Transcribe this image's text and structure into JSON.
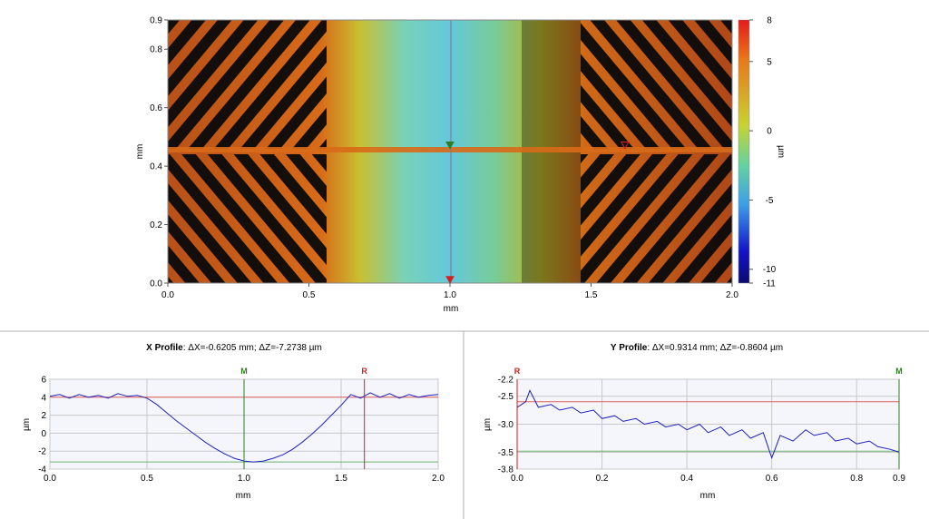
{
  "chart_data": [
    {
      "type": "heatmap",
      "xlabel": "mm",
      "ylabel": "mm",
      "xlim": [
        0.0,
        2.0
      ],
      "ylim": [
        0.0,
        0.9
      ],
      "xticks": [
        "0.0",
        "0.5",
        "1.0",
        "1.5",
        "2.0"
      ],
      "yticks": [
        "0.0",
        "0.2",
        "0.4",
        "0.6",
        "0.8",
        "0.9"
      ],
      "colorbar": {
        "label": "µm",
        "range": [
          -11,
          8
        ],
        "ticks": [
          "8",
          "5",
          "0",
          "-5",
          "-10",
          "-11"
        ],
        "colors": [
          "#e41a1a",
          "#e8781a",
          "#c8d232",
          "#64d2a0",
          "#3ca0e6",
          "#1414c8",
          "#0a0a6e"
        ]
      },
      "markers": [
        {
          "name": "M",
          "x": 1.0,
          "y": 0.47
        },
        {
          "name": "R",
          "x": 1.62,
          "y": 0.47
        },
        {
          "name": "",
          "x": 1.0,
          "y": 0.01
        }
      ],
      "grid": false
    },
    {
      "type": "line",
      "title_bold": "X Profile",
      "title_rest": ": ΔX=-0.6205 mm; ΔZ=-7.2738 µm",
      "xlabel": "mm",
      "ylabel": "µm",
      "xlim": [
        0.0,
        2.0
      ],
      "ylim": [
        -4,
        6
      ],
      "xticks": [
        "0.0",
        "0.5",
        "1.0",
        "1.5",
        "2.0"
      ],
      "yticks": [
        "-4",
        "-2",
        "0",
        "2",
        "4",
        "6"
      ],
      "cursors": [
        {
          "name": "M",
          "x": 1.0,
          "color": "#2e7d1e"
        },
        {
          "name": "R",
          "x": 1.62,
          "color": "#d42020"
        }
      ],
      "reference_lines": [
        {
          "y": 4.0,
          "color": "#e06060"
        },
        {
          "y": -3.2,
          "color": "#70b070"
        }
      ],
      "grid": true,
      "series": [
        {
          "x": [
            0.0,
            0.05,
            0.1,
            0.15,
            0.2,
            0.25,
            0.3,
            0.35,
            0.4,
            0.45,
            0.5,
            0.55,
            0.6,
            0.65,
            0.7,
            0.75,
            0.8,
            0.85,
            0.9,
            0.95,
            1.0,
            1.05,
            1.1,
            1.15,
            1.2,
            1.25,
            1.3,
            1.35,
            1.4,
            1.45,
            1.5,
            1.55,
            1.6,
            1.65,
            1.7,
            1.75,
            1.8,
            1.85,
            1.9,
            1.95,
            2.0
          ],
          "values": [
            4.1,
            4.3,
            3.9,
            4.3,
            4.0,
            4.2,
            3.9,
            4.4,
            4.1,
            4.2,
            3.9,
            3.2,
            2.3,
            1.4,
            0.6,
            -0.2,
            -1.0,
            -1.7,
            -2.3,
            -2.8,
            -3.1,
            -3.2,
            -3.1,
            -2.8,
            -2.4,
            -1.8,
            -1.0,
            -0.1,
            0.9,
            2.0,
            3.1,
            4.3,
            3.9,
            4.5,
            4.0,
            4.4,
            3.9,
            4.3,
            4.0,
            4.2,
            4.3
          ],
          "color": "#2020c0"
        }
      ]
    },
    {
      "type": "line",
      "title_bold": "Y Profile",
      "title_rest": ": ΔX=0.9314 mm; ΔZ=-0.8604 µm",
      "xlabel": "mm",
      "ylabel": "µm",
      "xlim": [
        0.0,
        0.9
      ],
      "ylim": [
        -3.8,
        -2.2
      ],
      "xticks": [
        "0.0",
        "0.2",
        "0.4",
        "0.6",
        "0.8",
        "0.9"
      ],
      "yticks": [
        "-2.2",
        "-2.5",
        "-3.0",
        "-3.5",
        "-3.8"
      ],
      "cursors": [
        {
          "name": "R",
          "x": 0.0,
          "color": "#d42020"
        },
        {
          "name": "M",
          "x": 0.9,
          "color": "#2e7d1e"
        }
      ],
      "reference_lines": [
        {
          "y": -2.6,
          "color": "#e06060"
        },
        {
          "y": -3.48,
          "color": "#70b070"
        }
      ],
      "grid": true,
      "series": [
        {
          "x": [
            0.0,
            0.02,
            0.03,
            0.05,
            0.08,
            0.1,
            0.13,
            0.15,
            0.18,
            0.2,
            0.23,
            0.25,
            0.28,
            0.3,
            0.33,
            0.35,
            0.38,
            0.4,
            0.43,
            0.45,
            0.48,
            0.5,
            0.53,
            0.55,
            0.58,
            0.6,
            0.62,
            0.65,
            0.68,
            0.7,
            0.73,
            0.75,
            0.78,
            0.8,
            0.83,
            0.85,
            0.88,
            0.9
          ],
          "values": [
            -2.7,
            -2.6,
            -2.4,
            -2.7,
            -2.65,
            -2.75,
            -2.7,
            -2.8,
            -2.75,
            -2.9,
            -2.85,
            -2.95,
            -2.9,
            -3.0,
            -2.95,
            -3.05,
            -3.0,
            -3.1,
            -3.0,
            -3.15,
            -3.05,
            -3.2,
            -3.1,
            -3.25,
            -3.15,
            -3.6,
            -3.2,
            -3.3,
            -3.1,
            -3.2,
            -3.15,
            -3.3,
            -3.25,
            -3.35,
            -3.3,
            -3.4,
            -3.45,
            -3.5
          ],
          "color": "#2020c0"
        }
      ]
    }
  ]
}
